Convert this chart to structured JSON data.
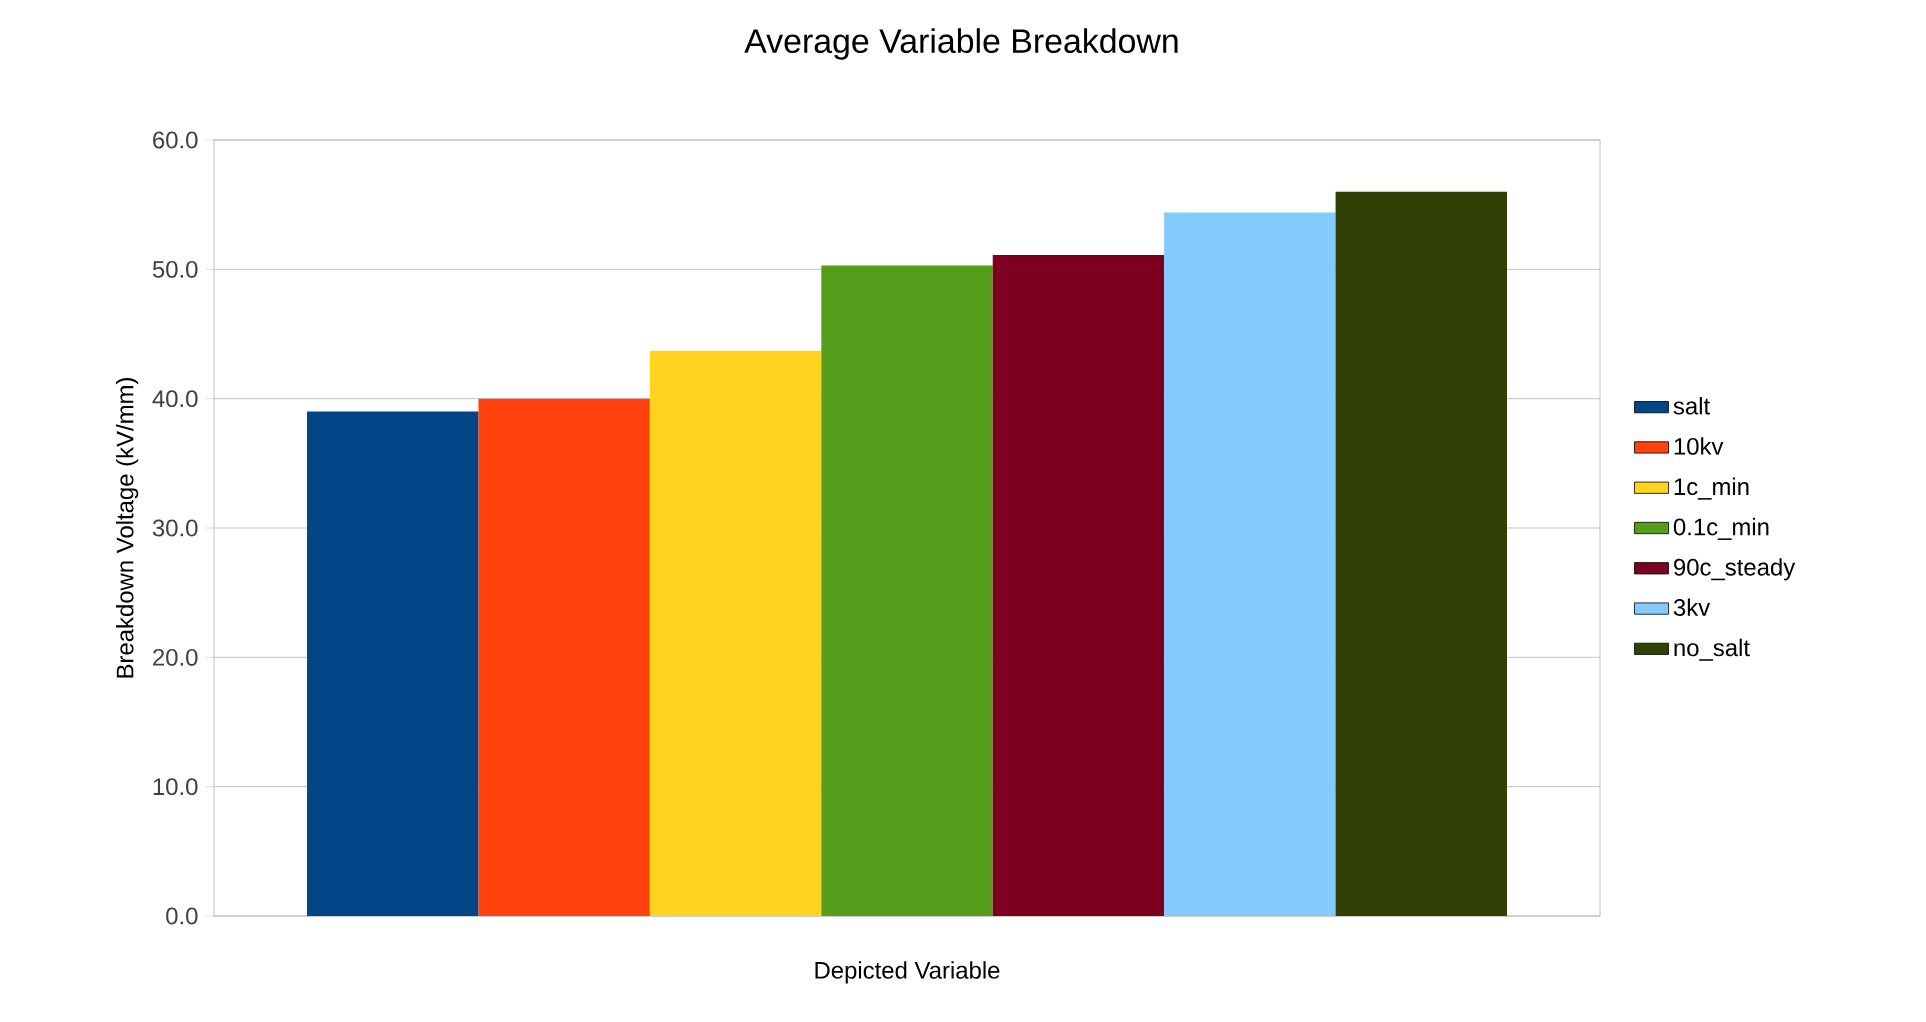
{
  "chart_data": {
    "type": "bar",
    "title": "Average Variable Breakdown",
    "xlabel": "Depicted Variable",
    "ylabel": "Breakdown Voltage (kV/mm)",
    "categories": [
      null
    ],
    "series": [
      {
        "name": "salt",
        "color": "#004586",
        "values": [
          39.0
        ]
      },
      {
        "name": "10kv",
        "color": "#ff420e",
        "values": [
          40.0
        ]
      },
      {
        "name": "1c_min",
        "color": "#ffd320",
        "values": [
          43.7
        ]
      },
      {
        "name": "0.1c_min",
        "color": "#579d1c",
        "values": [
          50.3
        ]
      },
      {
        "name": "90c_steady",
        "color": "#7e0021",
        "values": [
          51.1
        ]
      },
      {
        "name": "3kv",
        "color": "#83caff",
        "values": [
          54.4
        ]
      },
      {
        "name": "no_salt",
        "color": "#314004",
        "values": [
          56.0
        ]
      }
    ],
    "ylim": [
      0,
      60
    ],
    "yticks": [
      {
        "value": 0,
        "label": "0.0"
      },
      {
        "value": 10,
        "label": "10.0"
      },
      {
        "value": 20,
        "label": "20.0"
      },
      {
        "value": 30,
        "label": "30.0"
      },
      {
        "value": 40,
        "label": "40.0"
      },
      {
        "value": 50,
        "label": "50.0"
      },
      {
        "value": 60,
        "label": "60.0"
      }
    ],
    "grid": "y",
    "legend": "right"
  }
}
